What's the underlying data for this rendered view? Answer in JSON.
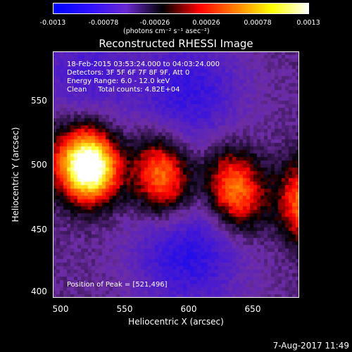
{
  "colorbar": {
    "ticks": [
      "-0.0013",
      "-0.00078",
      "-0.00026",
      "0.00026",
      "0.00078",
      "0.0013"
    ],
    "units": "(photons cm⁻² s⁻¹ asec⁻²)"
  },
  "chart_data": {
    "type": "heatmap",
    "title": "Reconstructed RHESSI Image",
    "xlabel": "Heliocentric X (arcsec)",
    "ylabel": "Heliocentric Y (arcsec)",
    "xlim": [
      495,
      686
    ],
    "ylim": [
      396,
      587
    ],
    "xticks": [
      "500",
      "550",
      "600",
      "650"
    ],
    "yticks": [
      "400",
      "450",
      "500",
      "550"
    ],
    "clim": [
      -0.0013,
      0.0013
    ],
    "colormap": [
      "#0000ff",
      "#5a1bd0",
      "#6a2aa0",
      "#000000",
      "#ff0000",
      "#ff8000",
      "#ffff00",
      "#ffffff"
    ],
    "peak": [
      521,
      496
    ],
    "annotations": {
      "time": "18-Feb-2015 03:53:24.000 to 04:03:24.000",
      "detectors": "Detectors: 3F 5F 6F 7F 8F 9F, Att 0",
      "energy": "Energy Range: 6.0 - 12.0 keV",
      "clean": "Clean     Total counts: 4.82E+04",
      "peak": "Position of Peak = [521,496]"
    }
  },
  "footer": "7-Aug-2017 11:49"
}
